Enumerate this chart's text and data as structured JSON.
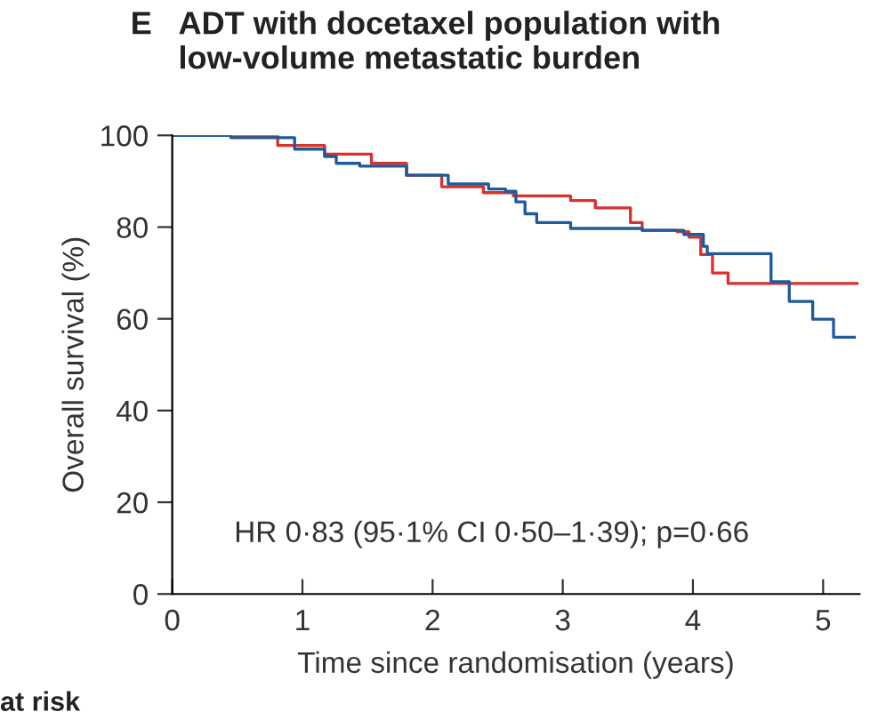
{
  "chart_data": {
    "type": "step",
    "title": "ADT with docetaxel population with\nlow-volume metastatic burden",
    "xlabel": "Time since randomisation (years)",
    "ylabel": "Overall survival (%)",
    "annotations": [
      "E",
      "HR 0·83 (95·1% CI 0·50–1·39); p=0·66",
      "at risk"
    ],
    "series": [
      {
        "color": "#d7322e",
        "x": [
          0,
          0.81,
          1.17,
          1.53,
          1.8,
          2.07,
          2.39,
          2.62,
          3.06,
          3.25,
          3.52,
          3.61,
          3.88,
          3.97,
          4.06,
          4.15,
          4.27,
          5.26
        ],
        "values": [
          100,
          97.8,
          95.9,
          93.9,
          91.3,
          88.8,
          87.5,
          86.8,
          85.8,
          84.2,
          81,
          79.3,
          79,
          77.8,
          74,
          70,
          67.7,
          67.7
        ]
      },
      {
        "color": "#1f5a9c",
        "x": [
          0,
          0.45,
          0.94,
          1.17,
          1.26,
          1.44,
          1.8,
          2.12,
          2.43,
          2.56,
          2.64,
          2.71,
          2.8,
          3.06,
          3.61,
          3.93,
          4.08,
          4.11,
          4.6,
          4.74,
          4.92,
          5.08,
          5.24
        ],
        "values": [
          100,
          99.5,
          97,
          95.4,
          93.9,
          93.3,
          91.3,
          89.4,
          88.3,
          87.8,
          85.5,
          82.9,
          81,
          79.7,
          79.3,
          78.4,
          75.8,
          74.2,
          68.1,
          63.8,
          59.9,
          56,
          56
        ]
      }
    ],
    "xlim": [
      0,
      5.28
    ],
    "ylim": [
      0,
      100
    ],
    "xticks": [
      0,
      1,
      2,
      3,
      4,
      5
    ],
    "yticks": [
      0,
      20,
      40,
      60,
      80,
      100
    ],
    "grid": false,
    "legend": false
  }
}
